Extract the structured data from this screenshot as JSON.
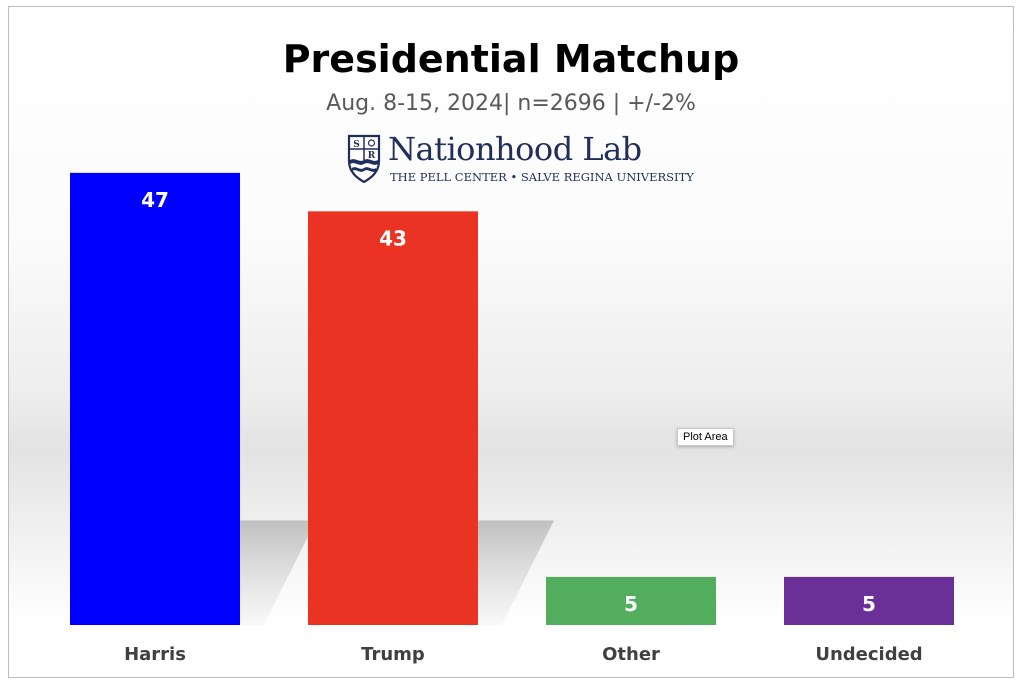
{
  "chart_data": {
    "type": "bar",
    "title": "Presidential Matchup",
    "subtitle": "Aug. 8-15, 2024| n=2696 | +/-2%",
    "categories": [
      "Harris",
      "Trump",
      "Other",
      "Undecided"
    ],
    "values": [
      47,
      43,
      5,
      5
    ],
    "colors": [
      "#0000FF",
      "#EB3323",
      "#52AE5D",
      "#6A3098"
    ],
    "ylim": [
      0,
      50
    ],
    "grid": false,
    "legend": "none",
    "xlabel": "",
    "ylabel": ""
  },
  "logo": {
    "name": "Nationhood Lab",
    "tagline": "THE PELL CENTER • SALVE REGINA UNIVERSITY",
    "shield_letters": "SR"
  },
  "tooltip": {
    "label": "Plot Area"
  }
}
